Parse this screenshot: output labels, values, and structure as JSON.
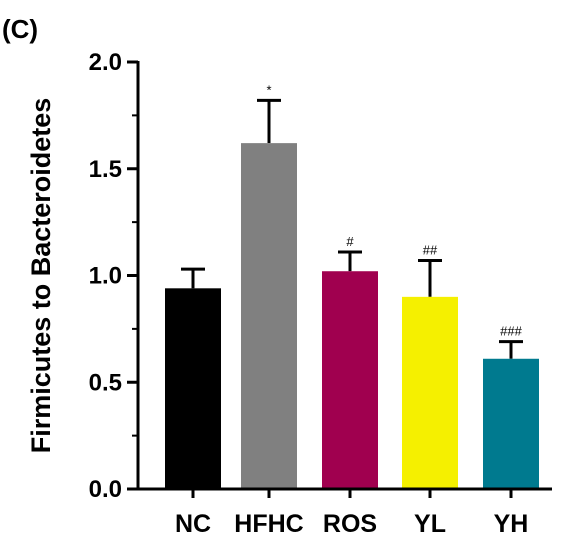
{
  "panel_label": "(C)",
  "colors": {
    "axis": "#000000",
    "error_bar": "#000000"
  },
  "chart_data": {
    "type": "bar",
    "title": "",
    "xlabel": "",
    "ylabel": "Firmicutes to Bacteroidetes",
    "ylim": [
      0,
      2.0
    ],
    "yticks": [
      0.0,
      0.5,
      1.0,
      1.5,
      2.0
    ],
    "ytick_labels": [
      "0.0",
      "0.5",
      "1.0",
      "1.5",
      "2.0"
    ],
    "grid": false,
    "legend": "none",
    "categories": [
      "NC",
      "HFHC",
      "ROS",
      "YL",
      "YH"
    ],
    "values": [
      0.94,
      1.62,
      1.02,
      0.9,
      0.61
    ],
    "error_upper": [
      1.03,
      1.82,
      1.11,
      1.07,
      0.69
    ],
    "annotations": [
      "",
      "*",
      "#",
      "##",
      "###"
    ],
    "bar_colors": [
      "#000000",
      "#808080",
      "#a0004f",
      "#f5f000",
      "#007a8f"
    ]
  }
}
